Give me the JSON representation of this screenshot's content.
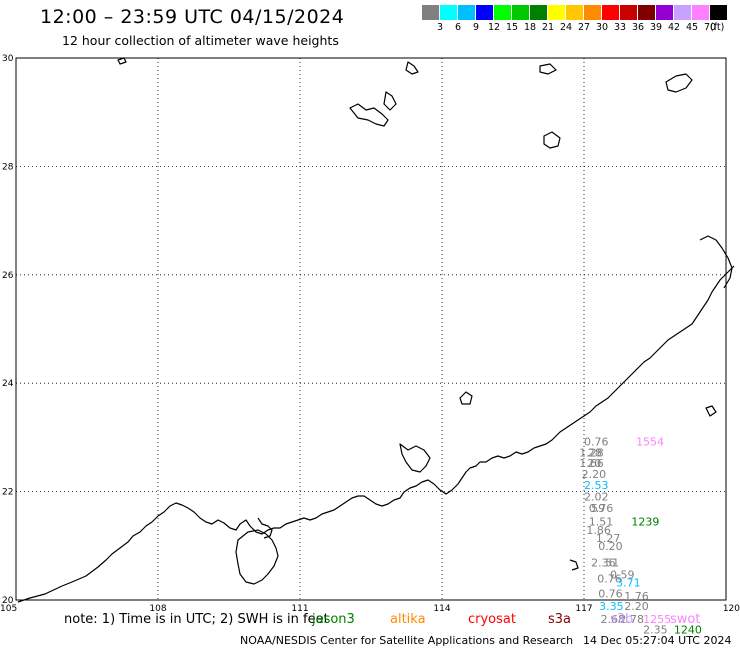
{
  "header": {
    "title": "12:00 – 23:59 UTC 04/15/2024",
    "subtitle": "12 hour collection of altimeter wave heights"
  },
  "scale": {
    "colors": [
      "#808080",
      "#00ffff",
      "#00bfff",
      "#0000ff",
      "#00ff00",
      "#00c800",
      "#008000",
      "#ffff00",
      "#ffc800",
      "#ff8c00",
      "#ff0000",
      "#c80000",
      "#800000",
      "#9400d3",
      "#c8a0ff",
      "#ff80ff",
      "#000000"
    ],
    "labels": [
      "3",
      "6",
      "9",
      "12",
      "15",
      "18",
      "21",
      "24",
      "27",
      "30",
      "33",
      "36",
      "39",
      "42",
      "45",
      "70"
    ],
    "unit": "(ft)"
  },
  "map": {
    "lat_range": [
      20,
      30
    ],
    "lon_range": [
      105,
      120
    ],
    "lat_ticks": [
      "30",
      "28",
      "26",
      "24",
      "22",
      "20"
    ],
    "lon_ticks": [
      "105",
      "108",
      "111",
      "114",
      "117",
      "120"
    ]
  },
  "observations": [
    {
      "lon": 117.0,
      "lat": 22.85,
      "value": "0.76",
      "color": "#808080"
    },
    {
      "lon": 118.1,
      "lat": 22.85,
      "value": "1554",
      "color": "#ff80ff"
    },
    {
      "lon": 116.9,
      "lat": 22.65,
      "value": "1.28",
      "color": "#808080"
    },
    {
      "lon": 117.08,
      "lat": 22.65,
      "value": "28",
      "color": "#808080"
    },
    {
      "lon": 116.9,
      "lat": 22.45,
      "value": "1.66",
      "color": "#808080"
    },
    {
      "lon": 117.07,
      "lat": 22.45,
      "value": "20",
      "color": "#808080"
    },
    {
      "lon": 116.95,
      "lat": 22.25,
      "value": "2.20",
      "color": "#808080"
    },
    {
      "lon": 117.0,
      "lat": 22.05,
      "value": "2.53",
      "color": "#00bfff"
    },
    {
      "lon": 117.0,
      "lat": 21.84,
      "value": "2.02",
      "color": "#808080"
    },
    {
      "lon": 117.1,
      "lat": 21.62,
      "value": "0.76",
      "color": "#808080"
    },
    {
      "lon": 117.15,
      "lat": 21.62,
      "value": "59",
      "color": "#808080"
    },
    {
      "lon": 118.0,
      "lat": 21.37,
      "value": "1239",
      "color": "#008000"
    },
    {
      "lon": 117.1,
      "lat": 21.37,
      "value": "1.51",
      "color": "#808080"
    },
    {
      "lon": 117.05,
      "lat": 21.22,
      "value": "1.86",
      "color": "#808080"
    },
    {
      "lon": 117.25,
      "lat": 21.07,
      "value": "1.27",
      "color": "#808080"
    },
    {
      "lon": 117.3,
      "lat": 20.92,
      "value": "0.20",
      "color": "#808080"
    },
    {
      "lon": 117.15,
      "lat": 20.62,
      "value": "2.36",
      "color": "#808080"
    },
    {
      "lon": 117.45,
      "lat": 20.62,
      "value": "51",
      "color": "#808080"
    },
    {
      "lon": 117.55,
      "lat": 20.4,
      "value": "0.59",
      "color": "#808080"
    },
    {
      "lon": 117.28,
      "lat": 20.32,
      "value": "0.76",
      "color": "#808080"
    },
    {
      "lon": 117.68,
      "lat": 20.25,
      "value": "3.71",
      "color": "#00bfff"
    },
    {
      "lon": 117.3,
      "lat": 20.05,
      "value": "0.76",
      "color": "#808080"
    },
    {
      "lon": 117.85,
      "lat": 20.0,
      "value": "1.76",
      "color": "#808080"
    },
    {
      "lon": 117.32,
      "lat": 19.82,
      "value": "3.35",
      "color": "#00bfff"
    },
    {
      "lon": 117.85,
      "lat": 19.82,
      "value": "2.20",
      "color": "#808080"
    },
    {
      "lon": 117.35,
      "lat": 19.58,
      "value": "2.68",
      "color": "#808080"
    },
    {
      "lon": 117.75,
      "lat": 19.58,
      "value": "2.78",
      "color": "#808080"
    },
    {
      "lon": 118.25,
      "lat": 19.58,
      "value": "1255",
      "color": "#ff80ff"
    },
    {
      "lon": 118.25,
      "lat": 19.38,
      "value": "2.35",
      "color": "#808080"
    },
    {
      "lon": 118.9,
      "lat": 19.38,
      "value": "1240",
      "color": "#008000"
    }
  ],
  "footer": {
    "note": "note: 1) Time is in UTC; 2) SWH is in feet",
    "missions": [
      {
        "name": "jason3",
        "color": "#008000"
      },
      {
        "name": "altika",
        "color": "#ff8c00"
      },
      {
        "name": "cryosat",
        "color": "#ff0000"
      },
      {
        "name": "s3a",
        "color": "#800000"
      },
      {
        "name": "s3b",
        "color": "#c8a0ff"
      },
      {
        "name": "swot",
        "color": "#ff80ff"
      }
    ],
    "credit": "NOAA/NESDIS Center for Satellite Applications and Research",
    "timestamp": "14 Dec 05:27:04 UTC 2024"
  }
}
